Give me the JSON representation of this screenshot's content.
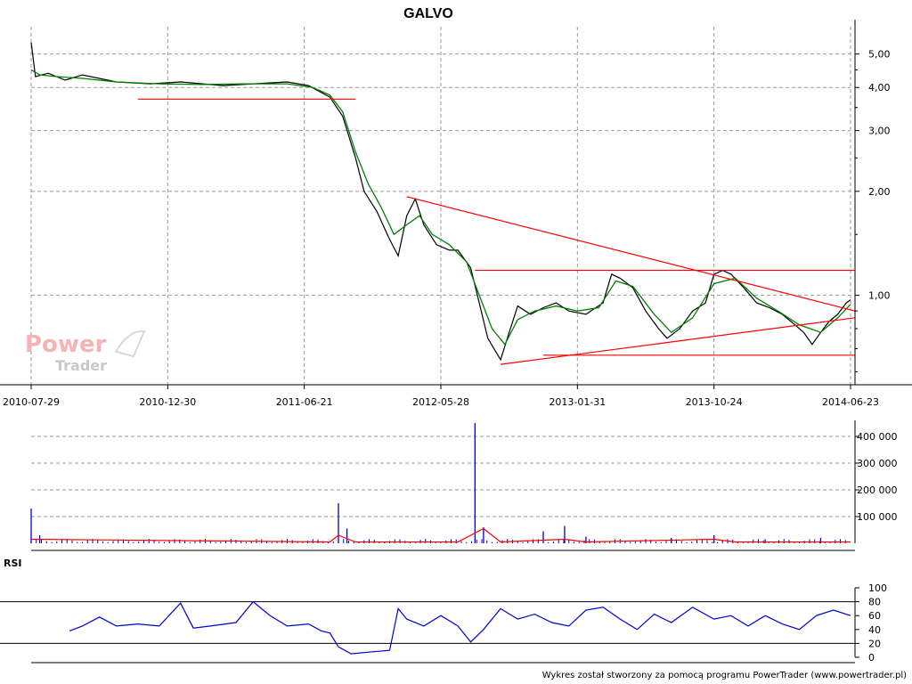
{
  "chart_data": [
    {
      "type": "line",
      "title": "GALVO",
      "y_scale": "log",
      "y_ticks": [
        {
          "value": 5.0,
          "label": "5,00"
        },
        {
          "value": 4.0,
          "label": "4,00"
        },
        {
          "value": 3.0,
          "label": "3,00"
        },
        {
          "value": 2.0,
          "label": "2,00"
        },
        {
          "value": 1.0,
          "label": "1,00"
        }
      ],
      "x_ticks": [
        "2010-07-29",
        "2010-12-30",
        "2011-06-21",
        "2012-05-28",
        "2013-01-31",
        "2013-10-24",
        "2014-06-23"
      ],
      "ylim": [
        0.55,
        6.0
      ],
      "series": [
        {
          "color": "#000000",
          "points": [
            [
              0,
              5.4
            ],
            [
              0.01,
              4.3
            ],
            [
              0.04,
              4.4
            ],
            [
              0.08,
              4.2
            ],
            [
              0.12,
              4.35
            ],
            [
              0.2,
              4.15
            ],
            [
              0.28,
              4.1
            ],
            [
              0.35,
              4.15
            ],
            [
              0.45,
              4.05
            ],
            [
              0.52,
              4.1
            ],
            [
              0.6,
              4.15
            ],
            [
              0.65,
              4.05
            ],
            [
              0.7,
              3.75
            ],
            [
              0.73,
              3.3
            ],
            [
              0.76,
              2.5
            ],
            [
              0.78,
              2.0
            ],
            [
              0.81,
              1.75
            ],
            [
              0.84,
              1.45
            ],
            [
              0.86,
              1.3
            ],
            [
              0.88,
              1.7
            ],
            [
              0.9,
              1.9
            ],
            [
              0.92,
              1.6
            ],
            [
              0.95,
              1.4
            ],
            [
              0.98,
              1.35
            ],
            [
              1.0,
              1.35
            ],
            [
              1.03,
              1.2
            ],
            [
              1.05,
              0.95
            ],
            [
              1.07,
              0.75
            ],
            [
              1.1,
              0.65
            ],
            [
              1.12,
              0.78
            ],
            [
              1.14,
              0.93
            ],
            [
              1.17,
              0.88
            ],
            [
              1.2,
              0.92
            ],
            [
              1.23,
              0.95
            ],
            [
              1.26,
              0.9
            ],
            [
              1.3,
              0.88
            ],
            [
              1.34,
              0.95
            ],
            [
              1.36,
              1.15
            ],
            [
              1.38,
              1.12
            ],
            [
              1.41,
              1.05
            ],
            [
              1.44,
              0.9
            ],
            [
              1.47,
              0.8
            ],
            [
              1.49,
              0.75
            ],
            [
              1.52,
              0.8
            ],
            [
              1.55,
              0.9
            ],
            [
              1.58,
              0.95
            ],
            [
              1.6,
              1.15
            ],
            [
              1.62,
              1.18
            ],
            [
              1.64,
              1.15
            ],
            [
              1.67,
              1.05
            ],
            [
              1.7,
              0.95
            ],
            [
              1.73,
              0.92
            ],
            [
              1.76,
              0.88
            ],
            [
              1.79,
              0.82
            ],
            [
              1.81,
              0.78
            ],
            [
              1.83,
              0.72
            ],
            [
              1.85,
              0.78
            ],
            [
              1.87,
              0.84
            ],
            [
              1.89,
              0.88
            ],
            [
              1.91,
              0.95
            ],
            [
              1.92,
              0.97
            ]
          ]
        },
        {
          "color": "#008000",
          "points": [
            [
              0,
              4.5
            ],
            [
              0.02,
              4.35
            ],
            [
              0.06,
              4.3
            ],
            [
              0.12,
              4.25
            ],
            [
              0.2,
              4.15
            ],
            [
              0.3,
              4.1
            ],
            [
              0.4,
              4.08
            ],
            [
              0.5,
              4.1
            ],
            [
              0.6,
              4.1
            ],
            [
              0.66,
              4.0
            ],
            [
              0.7,
              3.8
            ],
            [
              0.73,
              3.4
            ],
            [
              0.76,
              2.6
            ],
            [
              0.79,
              2.1
            ],
            [
              0.82,
              1.8
            ],
            [
              0.85,
              1.5
            ],
            [
              0.88,
              1.6
            ],
            [
              0.91,
              1.7
            ],
            [
              0.94,
              1.5
            ],
            [
              0.98,
              1.4
            ],
            [
              1.02,
              1.25
            ],
            [
              1.05,
              1.0
            ],
            [
              1.08,
              0.8
            ],
            [
              1.11,
              0.72
            ],
            [
              1.14,
              0.85
            ],
            [
              1.18,
              0.9
            ],
            [
              1.23,
              0.93
            ],
            [
              1.28,
              0.9
            ],
            [
              1.33,
              0.92
            ],
            [
              1.37,
              1.1
            ],
            [
              1.41,
              1.06
            ],
            [
              1.46,
              0.88
            ],
            [
              1.5,
              0.78
            ],
            [
              1.55,
              0.86
            ],
            [
              1.6,
              1.08
            ],
            [
              1.65,
              1.12
            ],
            [
              1.7,
              0.98
            ],
            [
              1.75,
              0.9
            ],
            [
              1.8,
              0.82
            ],
            [
              1.85,
              0.78
            ],
            [
              1.89,
              0.86
            ],
            [
              1.92,
              0.94
            ]
          ]
        }
      ],
      "trend_lines": [
        {
          "color": "#ff0000",
          "from": [
            0.25,
            3.7
          ],
          "to": [
            0.75,
            3.7
          ]
        },
        {
          "color": "#ff0000",
          "from": [
            0.88,
            1.93
          ],
          "to": [
            1.92,
            0.9
          ]
        },
        {
          "color": "#ff0000",
          "from": [
            1.1,
            0.63
          ],
          "to": [
            1.92,
            0.86
          ]
        },
        {
          "color": "#ff0000",
          "from": [
            1.04,
            1.18
          ],
          "to": [
            1.92,
            1.18
          ]
        },
        {
          "color": "#ff0000",
          "from": [
            1.2,
            0.67
          ],
          "to": [
            1.92,
            0.67
          ]
        }
      ]
    },
    {
      "type": "bar",
      "y_ticks": [
        {
          "value": 100000,
          "label": "100 000"
        },
        {
          "value": 200000,
          "label": "200 000"
        },
        {
          "value": 300000,
          "label": "300 000"
        },
        {
          "value": 400000,
          "label": "400 000"
        }
      ],
      "ylim": [
        0,
        460000
      ],
      "bar_color": "#0000cc",
      "average_color": "#ff0000",
      "spikes": [
        [
          0.0,
          130000
        ],
        [
          0.02,
          30000
        ],
        [
          0.72,
          150000
        ],
        [
          0.74,
          55000
        ],
        [
          1.04,
          450000
        ],
        [
          1.06,
          60000
        ],
        [
          1.2,
          45000
        ],
        [
          1.25,
          65000
        ],
        [
          1.3,
          25000
        ],
        [
          1.5,
          20000
        ],
        [
          1.6,
          30000
        ],
        [
          1.72,
          15000
        ],
        [
          1.85,
          20000
        ]
      ],
      "average": [
        [
          0,
          15000
        ],
        [
          0.7,
          5000
        ],
        [
          0.72,
          30000
        ],
        [
          0.76,
          5000
        ],
        [
          1.0,
          5000
        ],
        [
          1.06,
          55000
        ],
        [
          1.1,
          5000
        ],
        [
          1.25,
          15000
        ],
        [
          1.3,
          5000
        ],
        [
          1.6,
          15000
        ],
        [
          1.65,
          5000
        ],
        [
          1.92,
          5000
        ]
      ]
    },
    {
      "type": "line",
      "title": "RSI",
      "y_ticks": [
        {
          "value": 100,
          "label": "100"
        },
        {
          "value": 80,
          "label": "80"
        },
        {
          "value": 60,
          "label": "60"
        },
        {
          "value": 40,
          "label": "40"
        },
        {
          "value": 20,
          "label": "20"
        },
        {
          "value": 0,
          "label": "0"
        }
      ],
      "ylim": [
        0,
        100
      ],
      "levels": [
        80,
        20
      ],
      "series": [
        {
          "name": "RSI",
          "color": "#0000cc",
          "points": [
            [
              0.09,
              38
            ],
            [
              0.12,
              45
            ],
            [
              0.16,
              58
            ],
            [
              0.2,
              45
            ],
            [
              0.25,
              48
            ],
            [
              0.3,
              45
            ],
            [
              0.35,
              78
            ],
            [
              0.38,
              42
            ],
            [
              0.42,
              45
            ],
            [
              0.48,
              50
            ],
            [
              0.52,
              80
            ],
            [
              0.56,
              60
            ],
            [
              0.6,
              45
            ],
            [
              0.65,
              48
            ],
            [
              0.68,
              38
            ],
            [
              0.7,
              35
            ],
            [
              0.72,
              15
            ],
            [
              0.75,
              5
            ],
            [
              0.8,
              8
            ],
            [
              0.84,
              10
            ],
            [
              0.86,
              70
            ],
            [
              0.88,
              55
            ],
            [
              0.92,
              45
            ],
            [
              0.96,
              60
            ],
            [
              1.0,
              45
            ],
            [
              1.03,
              22
            ],
            [
              1.06,
              40
            ],
            [
              1.1,
              70
            ],
            [
              1.14,
              55
            ],
            [
              1.18,
              62
            ],
            [
              1.22,
              50
            ],
            [
              1.26,
              45
            ],
            [
              1.3,
              68
            ],
            [
              1.34,
              72
            ],
            [
              1.38,
              55
            ],
            [
              1.42,
              40
            ],
            [
              1.46,
              62
            ],
            [
              1.5,
              50
            ],
            [
              1.55,
              72
            ],
            [
              1.6,
              55
            ],
            [
              1.64,
              60
            ],
            [
              1.68,
              45
            ],
            [
              1.72,
              60
            ],
            [
              1.76,
              48
            ],
            [
              1.8,
              40
            ],
            [
              1.84,
              60
            ],
            [
              1.88,
              68
            ],
            [
              1.92,
              60
            ]
          ]
        }
      ]
    }
  ],
  "footer": "Wykres został stworzony za pomocą programu PowerTrader (www.powertrader.pl)",
  "watermark": {
    "line1": "Power",
    "line2": "Trader"
  }
}
